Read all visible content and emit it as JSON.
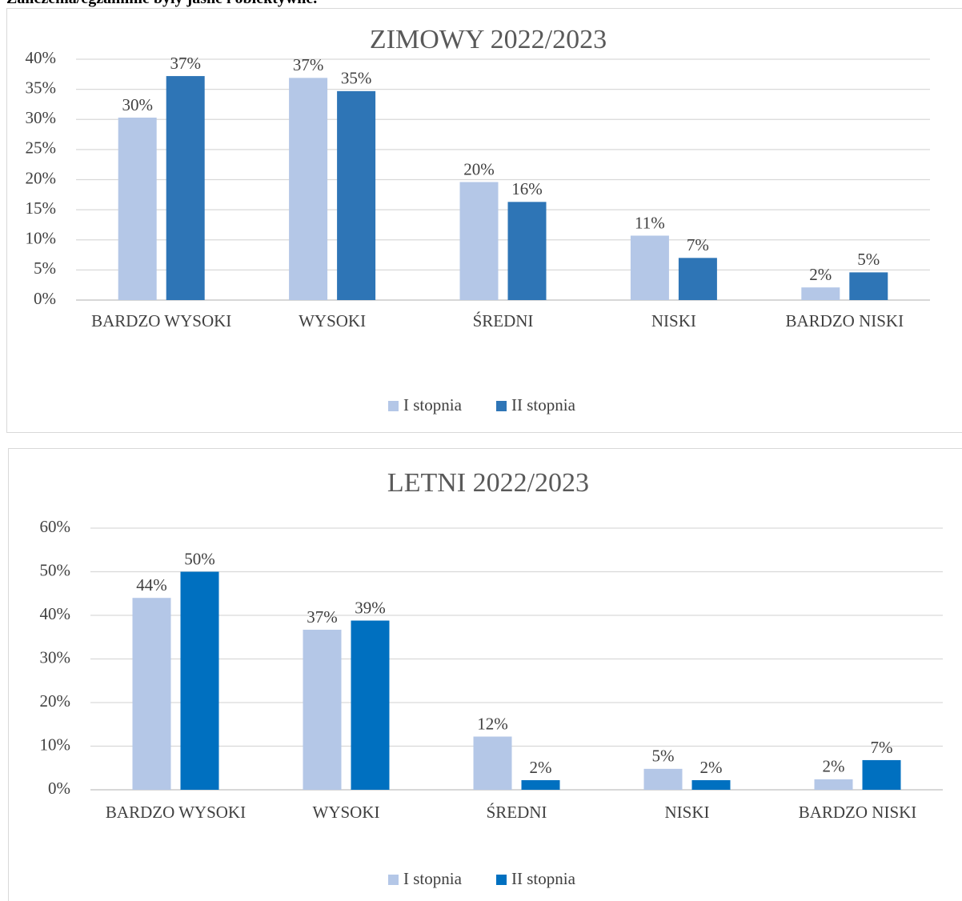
{
  "heading": "Zaliczenia/egzaminie były jasne i obiektywne.",
  "chart_data": [
    {
      "type": "bar",
      "title": "ZIMOWY 2022/2023",
      "categories": [
        "BARDZO WYSOKI",
        "WYSOKI",
        "ŚREDNI",
        "NISKI",
        "BARDZO NISKI"
      ],
      "series": [
        {
          "name": "I stopnia",
          "color": "#b4c7e7",
          "values": [
            30.3,
            36.9,
            19.6,
            10.7,
            2.1
          ],
          "value_labels": [
            "30%",
            "37%",
            "20%",
            "11%",
            "2%"
          ]
        },
        {
          "name": "II stopnia",
          "color": "#2e75b6",
          "values": [
            37.2,
            34.7,
            16.3,
            7.0,
            4.6
          ],
          "value_labels": [
            "37%",
            "35%",
            "16%",
            "7%",
            "5%"
          ]
        }
      ],
      "ylim": [
        0,
        40
      ],
      "yticks": [
        {
          "value": 0,
          "label": "0%"
        },
        {
          "value": 5,
          "label": "5%"
        },
        {
          "value": 10,
          "label": "10%"
        },
        {
          "value": 15,
          "label": "15%"
        },
        {
          "value": 20,
          "label": "20%"
        },
        {
          "value": 25,
          "label": "25%"
        },
        {
          "value": 30,
          "label": "30%"
        },
        {
          "value": 35,
          "label": "35%"
        },
        {
          "value": 40,
          "label": "40%"
        }
      ],
      "grid": true,
      "legend": "bottom"
    },
    {
      "type": "bar",
      "title": "LETNI 2022/2023",
      "categories": [
        "BARDZO WYSOKI",
        "WYSOKI",
        "ŚREDNI",
        "NISKI",
        "BARDZO NISKI"
      ],
      "series": [
        {
          "name": "I stopnia",
          "color": "#b4c7e7",
          "values": [
            44.0,
            36.7,
            12.2,
            4.8,
            2.4
          ],
          "value_labels": [
            "44%",
            "37%",
            "12%",
            "5%",
            "2%"
          ]
        },
        {
          "name": "II stopnia",
          "color": "#0070c0",
          "values": [
            50.0,
            38.8,
            2.2,
            2.2,
            6.8
          ],
          "value_labels": [
            "50%",
            "39%",
            "2%",
            "2%",
            "7%"
          ]
        }
      ],
      "ylim": [
        0,
        60
      ],
      "yticks": [
        {
          "value": 0,
          "label": "0%"
        },
        {
          "value": 10,
          "label": "10%"
        },
        {
          "value": 20,
          "label": "20%"
        },
        {
          "value": 30,
          "label": "30%"
        },
        {
          "value": 40,
          "label": "40%"
        },
        {
          "value": 50,
          "label": "50%"
        },
        {
          "value": 60,
          "label": "60%"
        }
      ],
      "grid": true,
      "legend": "bottom"
    }
  ]
}
